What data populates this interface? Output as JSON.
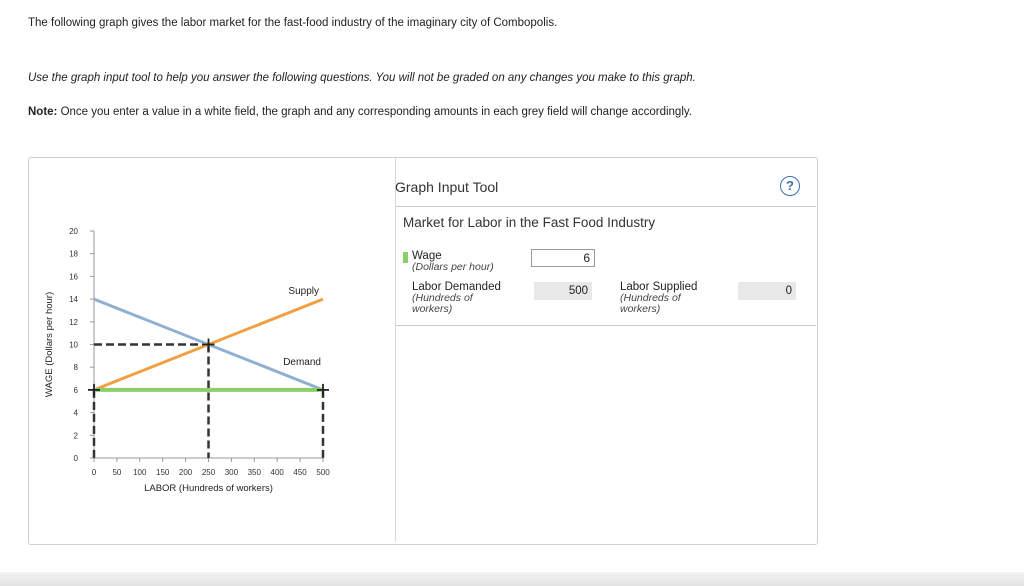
{
  "page": {
    "intro_text": "The following graph gives the labor market for the fast-food industry of the imaginary city of Combopolis.",
    "instruction_text": "Use the graph input tool to help you answer the following questions. You will not be graded on any changes you make to this graph.",
    "note_label": "Note:",
    "note_text": " Once you enter a value in a white field, the graph and any corresponding amounts in each grey field will change accordingly."
  },
  "tool": {
    "title": "Graph Input Tool",
    "help_icon": "?",
    "market_title": "Market for Labor in the Fast Food Industry",
    "wage_label": "Wage",
    "wage_unit": "(Dollars per hour)",
    "wage_value": "6",
    "labor_demanded_label": "Labor Demanded",
    "labor_demanded_unit_1": "(Hundreds of",
    "labor_demanded_unit_2": "workers)",
    "labor_demanded_value": "500",
    "labor_supplied_label": "Labor Supplied",
    "labor_supplied_unit_1": "(Hundreds of",
    "labor_supplied_unit_2": "workers)",
    "labor_supplied_value": "0"
  },
  "colors": {
    "supply": "#f0a040",
    "demand": "#8fb0d0",
    "wage_line": "#8ccf6a",
    "dashed": "#333333"
  },
  "chart_data": {
    "type": "line",
    "xlabel": "LABOR (Hundreds of workers)",
    "ylabel": "WAGE (Dollars per hour)",
    "xlim": [
      0,
      500
    ],
    "ylim": [
      0,
      20
    ],
    "x_ticks": [
      0,
      50,
      100,
      150,
      200,
      250,
      300,
      350,
      400,
      450,
      500
    ],
    "y_ticks": [
      0,
      2,
      4,
      6,
      8,
      10,
      12,
      14,
      16,
      18,
      20
    ],
    "series": [
      {
        "name": "Supply",
        "x": [
          0,
          500
        ],
        "y": [
          6,
          14
        ]
      },
      {
        "name": "Demand",
        "x": [
          0,
          500
        ],
        "y": [
          14,
          6
        ]
      }
    ],
    "equilibrium": {
      "x": 250,
      "y": 10
    },
    "wage_line": {
      "y": 6,
      "x": [
        0,
        500
      ]
    },
    "drop_lines": [
      {
        "x": 0,
        "y": 6
      },
      {
        "x": 500,
        "y": 6
      }
    ]
  }
}
